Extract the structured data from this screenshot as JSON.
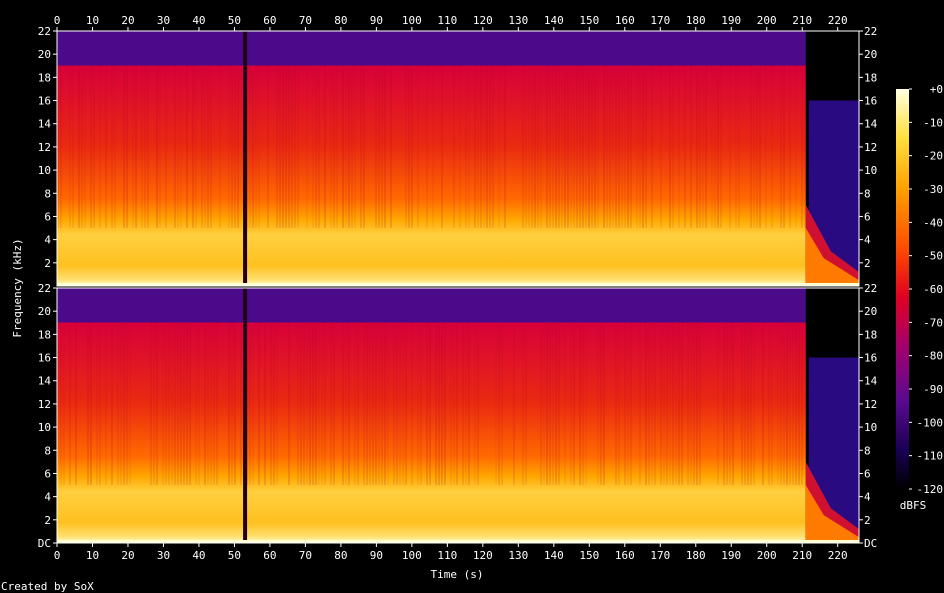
{
  "chart_data": {
    "type": "heatmap",
    "title": "",
    "xlabel": "Time (s)",
    "ylabel": "Frequency (kHz)",
    "xlim": [
      0,
      226
    ],
    "ylim": [
      0,
      22
    ],
    "x_ticks": [
      "0",
      "10",
      "20",
      "30",
      "40",
      "50",
      "60",
      "70",
      "80",
      "90",
      "100",
      "110",
      "120",
      "130",
      "140",
      "150",
      "160",
      "170",
      "180",
      "190",
      "200",
      "210",
      "220"
    ],
    "y_ticks": [
      "DC",
      "2",
      "4",
      "6",
      "8",
      "10",
      "12",
      "14",
      "16",
      "18",
      "20",
      "22"
    ],
    "channels": [
      "left",
      "right"
    ],
    "colorbar": {
      "label": "dBFS",
      "range": [
        -120,
        0
      ],
      "ticks": [
        "+0",
        "-10",
        "-20",
        "-30",
        "-40",
        "-50",
        "-60",
        "-70",
        "-80",
        "-90",
        "-100",
        "-110",
        "-120"
      ]
    },
    "features": {
      "lowpass_cutoff_khz": 19,
      "track_gap_s": 53,
      "fade_out_start_s": 211,
      "upper_band_cut_khz": 16
    },
    "colormap": [
      "#000000",
      "#1a0055",
      "#5a0a8f",
      "#a00070",
      "#e00020",
      "#ff4a00",
      "#ffa000",
      "#ffe040",
      "#ffffd0"
    ],
    "credit": "Created by SoX"
  }
}
